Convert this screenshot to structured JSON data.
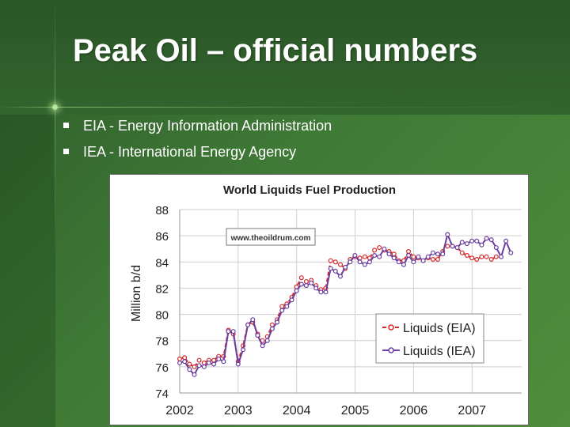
{
  "slide": {
    "title": "Peak Oil – official numbers",
    "bullets": [
      "EIA - Energy Information Administration",
      "IEA - International Energy Agency"
    ]
  },
  "chart_data": {
    "type": "line",
    "title": "World Liquids Fuel Production",
    "xlabel": "",
    "ylabel": "Million b/d",
    "watermark": "www.theoildrum.com",
    "xlim": [
      2002.0,
      2007.85
    ],
    "ylim": [
      74,
      88
    ],
    "yticks": [
      74,
      76,
      78,
      80,
      82,
      84,
      86,
      88
    ],
    "xticks": [
      2002,
      2003,
      2004,
      2005,
      2006,
      2007
    ],
    "grid": true,
    "legend_position": "bottom-right",
    "x_start": 2002.0,
    "x_step": 0.0833,
    "series": [
      {
        "name": "Liquids (EIA)",
        "color": "#d62728",
        "dash": "dashed",
        "values": [
          76.6,
          76.7,
          76.2,
          76.0,
          76.5,
          76.3,
          76.5,
          76.5,
          76.8,
          76.8,
          78.8,
          78.5,
          76.4,
          77.6,
          79.2,
          79.4,
          78.5,
          78.0,
          78.3,
          79.2,
          79.6,
          80.6,
          80.8,
          81.3,
          82.1,
          82.8,
          82.5,
          82.6,
          82.2,
          81.9,
          82.0,
          84.1,
          84.0,
          83.8,
          83.5,
          84.2,
          84.4,
          84.3,
          84.4,
          84.3,
          84.9,
          85.1,
          84.9,
          84.8,
          84.6,
          84.1,
          84.1,
          84.8,
          84.4,
          84.3,
          84.1,
          84.3,
          84.2,
          84.2,
          84.8,
          85.2,
          85.2,
          85.1,
          84.7,
          84.5,
          84.3,
          84.2,
          84.4,
          84.4,
          84.2,
          84.4
        ]
      },
      {
        "name": "Liquids (IEA)",
        "color": "#6a3fa0",
        "dash": "solid",
        "values": [
          76.3,
          76.4,
          75.8,
          75.4,
          76.1,
          76.0,
          76.3,
          76.2,
          76.6,
          76.4,
          78.7,
          78.7,
          76.2,
          77.3,
          79.2,
          79.6,
          78.4,
          77.6,
          78.0,
          78.9,
          79.4,
          80.3,
          80.6,
          81.1,
          81.8,
          82.3,
          82.2,
          82.4,
          82.0,
          81.7,
          81.7,
          83.5,
          83.3,
          82.9,
          83.6,
          84.0,
          84.5,
          84.0,
          83.8,
          84.0,
          84.5,
          84.4,
          85.0,
          84.6,
          84.3,
          84.0,
          83.8,
          84.5,
          84.0,
          84.4,
          84.1,
          84.4,
          84.7,
          84.6,
          84.6,
          86.1,
          85.2,
          85.1,
          85.5,
          85.4,
          85.6,
          85.6,
          85.3,
          85.8,
          85.7,
          85.1,
          84.4,
          85.6,
          84.7
        ]
      }
    ]
  }
}
